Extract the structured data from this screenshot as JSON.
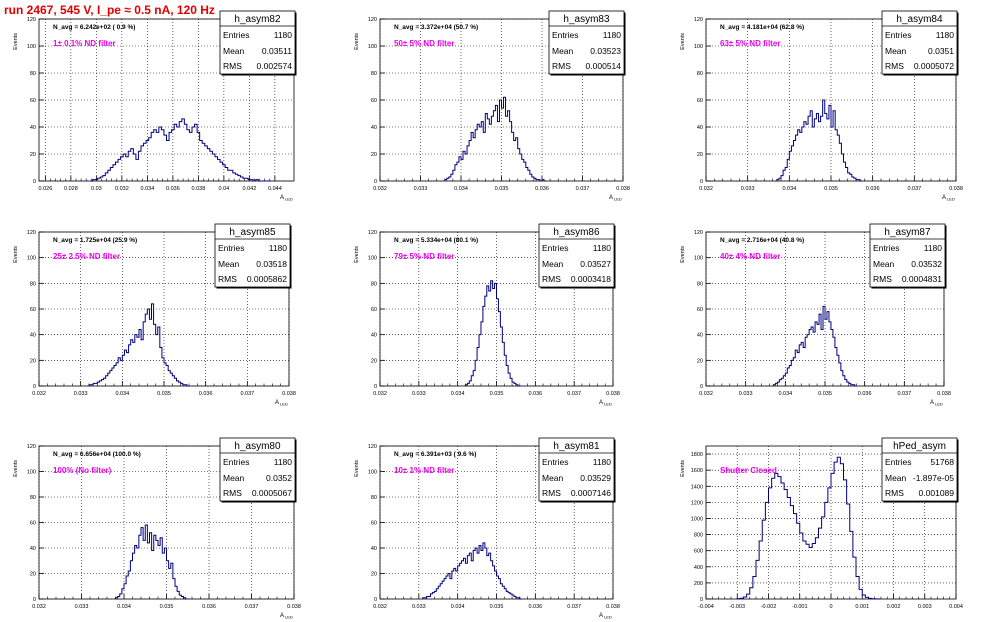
{
  "page_title": "run 2467,   545 V, I_pe ≈ 0.5 nA, 120 Hz",
  "colors": {
    "title": "#e00000",
    "histogram": "#00007f",
    "label": "#ee00ee",
    "axis": "#000000",
    "grid": "#000000"
  },
  "y_axis_label": "Events",
  "stats_labels": {
    "entries": "Entries",
    "mean": "Mean",
    "rms": "RMS"
  },
  "chart_data": [
    {
      "type": "histogram",
      "hist_name": "h_asym82",
      "navg": "N_avg = 6.242e+02 ( 0.9 %)",
      "filter_label": "1± 0.1% ND filter",
      "stats": {
        "entries": "1180",
        "mean": "0.03511",
        "rms": "0.002574"
      },
      "xlabel": "A_LED",
      "xlim": [
        0.0255,
        0.0455
      ],
      "ylim": [
        0,
        120
      ],
      "xticks": [
        0.026,
        0.028,
        0.03,
        0.032,
        0.034,
        0.036,
        0.038,
        0.04,
        0.042,
        0.044
      ],
      "xtick_labels": [
        "0.026",
        "0.028",
        "0.03",
        "0.032",
        "0.034",
        "0.036",
        "0.038",
        "0.04",
        "0.042",
        "0.044"
      ],
      "yticks": [
        0,
        20,
        40,
        60,
        80,
        100,
        120
      ],
      "ytick_labels": [
        "0",
        "20",
        "40",
        "60",
        "80",
        "100",
        "120"
      ],
      "bin_start": 0.0295,
      "bin_width": 0.0002,
      "values": [
        0,
        1,
        1,
        2,
        3,
        4,
        6,
        8,
        10,
        12,
        14,
        16,
        18,
        20,
        18,
        22,
        24,
        20,
        16,
        22,
        26,
        28,
        30,
        32,
        36,
        38,
        36,
        40,
        38,
        34,
        30,
        36,
        38,
        42,
        40,
        44,
        46,
        42,
        38,
        36,
        40,
        42,
        36,
        30,
        28,
        26,
        24,
        22,
        20,
        18,
        16,
        14,
        12,
        10,
        8,
        8,
        6,
        5,
        4,
        3,
        2,
        2,
        1,
        1,
        0,
        1,
        0,
        0,
        0,
        0,
        0
      ]
    },
    {
      "type": "histogram",
      "hist_name": "h_asym83",
      "navg": "N_avg = 3.372e+04 (50.7 %)",
      "filter_label": "50± 5% ND filter",
      "stats": {
        "entries": "1180",
        "mean": "0.03523",
        "rms": "0.000514"
      },
      "xlabel": "A_LED",
      "xlim": [
        0.032,
        0.038
      ],
      "ylim": [
        0,
        120
      ],
      "xticks": [
        0.032,
        0.033,
        0.034,
        0.035,
        0.036,
        0.037,
        0.038
      ],
      "xtick_labels": [
        "0.032",
        "0.033",
        "0.034",
        "0.035",
        "0.036",
        "0.037",
        "0.038"
      ],
      "yticks": [
        0,
        20,
        40,
        60,
        80,
        100,
        120
      ],
      "ytick_labels": [
        "0",
        "20",
        "40",
        "60",
        "80",
        "100",
        "120"
      ],
      "bin_start": 0.0336,
      "bin_width": 5e-05,
      "values": [
        1,
        2,
        3,
        5,
        8,
        12,
        14,
        18,
        16,
        22,
        20,
        26,
        30,
        36,
        32,
        38,
        42,
        40,
        44,
        36,
        50,
        46,
        42,
        48,
        52,
        56,
        44,
        60,
        54,
        62,
        48,
        52,
        44,
        36,
        30,
        32,
        24,
        20,
        16,
        14,
        10,
        8,
        5,
        3,
        2,
        1,
        1,
        0,
        1,
        0
      ]
    },
    {
      "type": "histogram",
      "hist_name": "h_asym84",
      "navg": "N_avg = 4.181e+04 (62.8 %)",
      "filter_label": "63± 5% ND filter",
      "stats": {
        "entries": "1180",
        "mean": "0.0351",
        "rms": "0.0005072"
      },
      "xlabel": "A_LED",
      "xlim": [
        0.032,
        0.038
      ],
      "ylim": [
        0,
        120
      ],
      "xticks": [
        0.032,
        0.033,
        0.034,
        0.035,
        0.036,
        0.037,
        0.038
      ],
      "xtick_labels": [
        "0.032",
        "0.033",
        "0.034",
        "0.035",
        "0.036",
        "0.037",
        "0.038"
      ],
      "yticks": [
        0,
        20,
        40,
        60,
        80,
        100,
        120
      ],
      "ytick_labels": [
        "0",
        "20",
        "40",
        "60",
        "80",
        "100",
        "120"
      ],
      "bin_start": 0.0337,
      "bin_width": 5e-05,
      "values": [
        1,
        2,
        4,
        8,
        10,
        16,
        22,
        26,
        30,
        34,
        38,
        36,
        40,
        44,
        42,
        48,
        52,
        40,
        46,
        50,
        44,
        48,
        60,
        50,
        46,
        56,
        40,
        52,
        38,
        34,
        28,
        20,
        14,
        10,
        6,
        5,
        3,
        2,
        1,
        1,
        0
      ]
    },
    {
      "type": "histogram",
      "hist_name": "h_asym85",
      "navg": "N_avg = 1.725e+04 (25.9 %)",
      "filter_label": "25± 2.5% ND filter",
      "stats": {
        "entries": "1180",
        "mean": "0.03518",
        "rms": "0.0005862"
      },
      "xlabel": "A_LED",
      "xlim": [
        0.032,
        0.038
      ],
      "ylim": [
        0,
        120
      ],
      "xticks": [
        0.032,
        0.033,
        0.034,
        0.035,
        0.036,
        0.037,
        0.038
      ],
      "xtick_labels": [
        "0.032",
        "0.033",
        "0.034",
        "0.035",
        "0.036",
        "0.037",
        "0.038"
      ],
      "yticks": [
        0,
        20,
        40,
        60,
        80,
        100,
        120
      ],
      "ytick_labels": [
        "0",
        "20",
        "40",
        "60",
        "80",
        "100",
        "120"
      ],
      "bin_start": 0.0332,
      "bin_width": 5e-05,
      "values": [
        1,
        1,
        2,
        2,
        3,
        4,
        5,
        6,
        8,
        10,
        12,
        14,
        16,
        18,
        22,
        20,
        24,
        28,
        26,
        32,
        36,
        34,
        40,
        38,
        44,
        36,
        50,
        56,
        60,
        52,
        64,
        48,
        40,
        46,
        30,
        22,
        18,
        16,
        12,
        10,
        8,
        6,
        4,
        3,
        2,
        1,
        1,
        0
      ]
    },
    {
      "type": "histogram",
      "hist_name": "h_asym86",
      "navg": "N_avg = 5.334e+04 (80.1 %)",
      "filter_label": "79± 5% ND filter",
      "stats": {
        "entries": "1180",
        "mean": "0.03527",
        "rms": "0.0003418"
      },
      "xlabel": "A_LED",
      "xlim": [
        0.032,
        0.038
      ],
      "ylim": [
        0,
        120
      ],
      "xticks": [
        0.032,
        0.033,
        0.034,
        0.035,
        0.036,
        0.037,
        0.038
      ],
      "xtick_labels": [
        "0.032",
        "0.033",
        "0.034",
        "0.035",
        "0.036",
        "0.037",
        "0.038"
      ],
      "yticks": [
        0,
        20,
        40,
        60,
        80,
        100,
        120
      ],
      "ytick_labels": [
        "0",
        "20",
        "40",
        "60",
        "80",
        "100",
        "120"
      ],
      "bin_start": 0.0342,
      "bin_width": 5e-05,
      "values": [
        1,
        2,
        4,
        8,
        12,
        20,
        30,
        40,
        50,
        62,
        70,
        78,
        74,
        82,
        76,
        80,
        68,
        58,
        46,
        34,
        24,
        16,
        10,
        6,
        3,
        2,
        1,
        0
      ]
    },
    {
      "type": "histogram",
      "hist_name": "h_asym87",
      "navg": "N_avg = 2.716e+04 (40.8 %)",
      "filter_label": "40± 4% ND filter",
      "stats": {
        "entries": "1180",
        "mean": "0.03532",
        "rms": "0.0004831"
      },
      "xlabel": "A_LED",
      "xlim": [
        0.032,
        0.038
      ],
      "ylim": [
        0,
        120
      ],
      "xticks": [
        0.032,
        0.033,
        0.034,
        0.035,
        0.036,
        0.037,
        0.038
      ],
      "xtick_labels": [
        "0.032",
        "0.033",
        "0.034",
        "0.035",
        "0.036",
        "0.037",
        "0.038"
      ],
      "yticks": [
        0,
        20,
        40,
        60,
        80,
        100,
        120
      ],
      "ytick_labels": [
        "0",
        "20",
        "40",
        "60",
        "80",
        "100",
        "120"
      ],
      "bin_start": 0.0337,
      "bin_width": 5e-05,
      "values": [
        1,
        2,
        3,
        5,
        6,
        8,
        10,
        14,
        16,
        20,
        22,
        28,
        26,
        32,
        34,
        30,
        38,
        40,
        44,
        46,
        42,
        50,
        48,
        56,
        44,
        62,
        52,
        58,
        50,
        44,
        38,
        30,
        24,
        18,
        12,
        8,
        5,
        3,
        2,
        1,
        1,
        0
      ]
    },
    {
      "type": "histogram",
      "hist_name": "h_asym80",
      "navg": "N_avg = 6.656e+04 (100.0 %)",
      "filter_label": "100% (No filter)",
      "stats": {
        "entries": "1180",
        "mean": "0.0352",
        "rms": "0.0005067"
      },
      "xlabel": "A_LED",
      "xlim": [
        0.032,
        0.038
      ],
      "ylim": [
        0,
        120
      ],
      "xticks": [
        0.032,
        0.033,
        0.034,
        0.035,
        0.036,
        0.037,
        0.038
      ],
      "xtick_labels": [
        "0.032",
        "0.033",
        "0.034",
        "0.035",
        "0.036",
        "0.037",
        "0.038"
      ],
      "yticks": [
        0,
        20,
        40,
        60,
        80,
        100,
        120
      ],
      "ytick_labels": [
        "0",
        "20",
        "40",
        "60",
        "80",
        "100",
        "120"
      ],
      "bin_start": 0.0338,
      "bin_width": 5e-05,
      "values": [
        1,
        2,
        4,
        8,
        12,
        18,
        22,
        30,
        36,
        42,
        40,
        50,
        56,
        46,
        58,
        44,
        52,
        38,
        50,
        46,
        42,
        48,
        36,
        40,
        30,
        24,
        28,
        16,
        10,
        6,
        3,
        2,
        1,
        0
      ]
    },
    {
      "type": "histogram",
      "hist_name": "h_asym81",
      "navg": "N_avg = 6.391e+03 ( 9.6 %)",
      "filter_label": "10± 1% ND filter",
      "stats": {
        "entries": "1180",
        "mean": "0.03529",
        "rms": "0.0007146"
      },
      "xlabel": "A_LED",
      "xlim": [
        0.032,
        0.038
      ],
      "ylim": [
        0,
        120
      ],
      "xticks": [
        0.032,
        0.033,
        0.034,
        0.035,
        0.036,
        0.037,
        0.038
      ],
      "xtick_labels": [
        "0.032",
        "0.033",
        "0.034",
        "0.035",
        "0.036",
        "0.037",
        "0.038"
      ],
      "yticks": [
        0,
        20,
        40,
        60,
        80,
        100,
        120
      ],
      "ytick_labels": [
        "0",
        "20",
        "40",
        "60",
        "80",
        "100",
        "120"
      ],
      "bin_start": 0.0331,
      "bin_width": 5e-05,
      "values": [
        1,
        1,
        2,
        2,
        4,
        5,
        6,
        8,
        10,
        12,
        14,
        16,
        18,
        20,
        16,
        22,
        24,
        22,
        26,
        28,
        30,
        32,
        28,
        34,
        36,
        30,
        38,
        40,
        36,
        42,
        38,
        44,
        40,
        34,
        36,
        30,
        26,
        22,
        18,
        16,
        12,
        10,
        8,
        6,
        5,
        4,
        3,
        2,
        1,
        1,
        0
      ]
    },
    {
      "type": "histogram",
      "hist_name": "hPed_asym",
      "navg": "",
      "filter_label": "Shutter Closed",
      "stats": {
        "entries": "51768",
        "mean": "-1.897e-05",
        "rms": "0.001089"
      },
      "xlabel": "",
      "xlim": [
        -0.004,
        0.004
      ],
      "ylim": [
        0,
        1900
      ],
      "xticks": [
        -0.004,
        -0.003,
        -0.002,
        -0.001,
        0,
        0.001,
        0.002,
        0.003,
        0.004
      ],
      "xtick_labels": [
        "-0.004",
        "-0.003",
        "-0.002",
        "-0.001",
        "0",
        "0.001",
        "0.002",
        "0.003",
        "0.004"
      ],
      "yticks": [
        0,
        200,
        400,
        600,
        800,
        1000,
        1200,
        1400,
        1600,
        1800
      ],
      "ytick_labels": [
        "0",
        "200",
        "400",
        "600",
        "800",
        "1000",
        "1200",
        "1400",
        "1600",
        "1800"
      ],
      "bin_start": -0.003,
      "bin_width": 0.0001,
      "values": [
        5,
        10,
        25,
        60,
        140,
        280,
        480,
        720,
        980,
        1200,
        1380,
        1500,
        1560,
        1520,
        1440,
        1360,
        1260,
        1160,
        1060,
        940,
        820,
        720,
        680,
        640,
        690,
        760,
        880,
        1020,
        1200,
        1380,
        1560,
        1700,
        1760,
        1680,
        1480,
        1180,
        840,
        520,
        280,
        120,
        50,
        20,
        8,
        3,
        1,
        0
      ]
    }
  ]
}
